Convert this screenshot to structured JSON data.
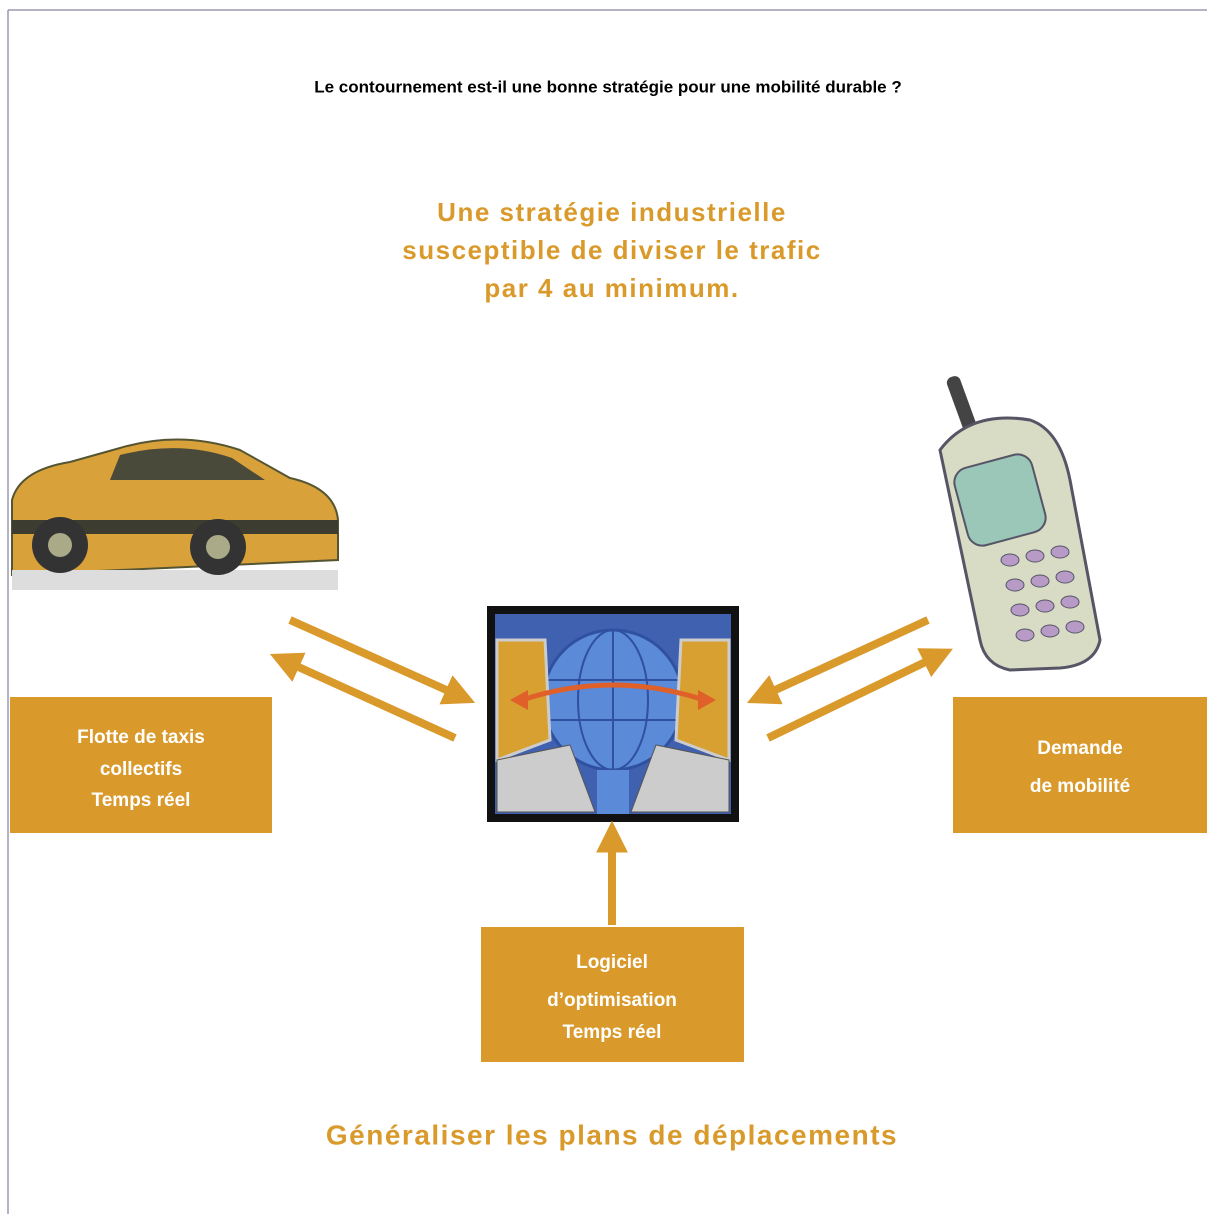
{
  "header": {
    "title": "Le contournement est-il une bonne stratégie pour une mobilité durable ?"
  },
  "headline": {
    "lines": [
      "Une stratégie industrielle",
      "susceptible de diviser le trafic",
      "par 4 au minimum."
    ]
  },
  "nodes": [
    {
      "lines": [
        "Flotte de taxis",
        "collectifs",
        "Temps réel"
      ]
    },
    {
      "lines": [
        "Demande",
        "de mobilité"
      ]
    },
    {
      "lines": [
        "Logiciel",
        "d’optimisation",
        "Temps réel"
      ]
    }
  ],
  "footer": {
    "title": "Généraliser les plans de déplacements"
  }
}
